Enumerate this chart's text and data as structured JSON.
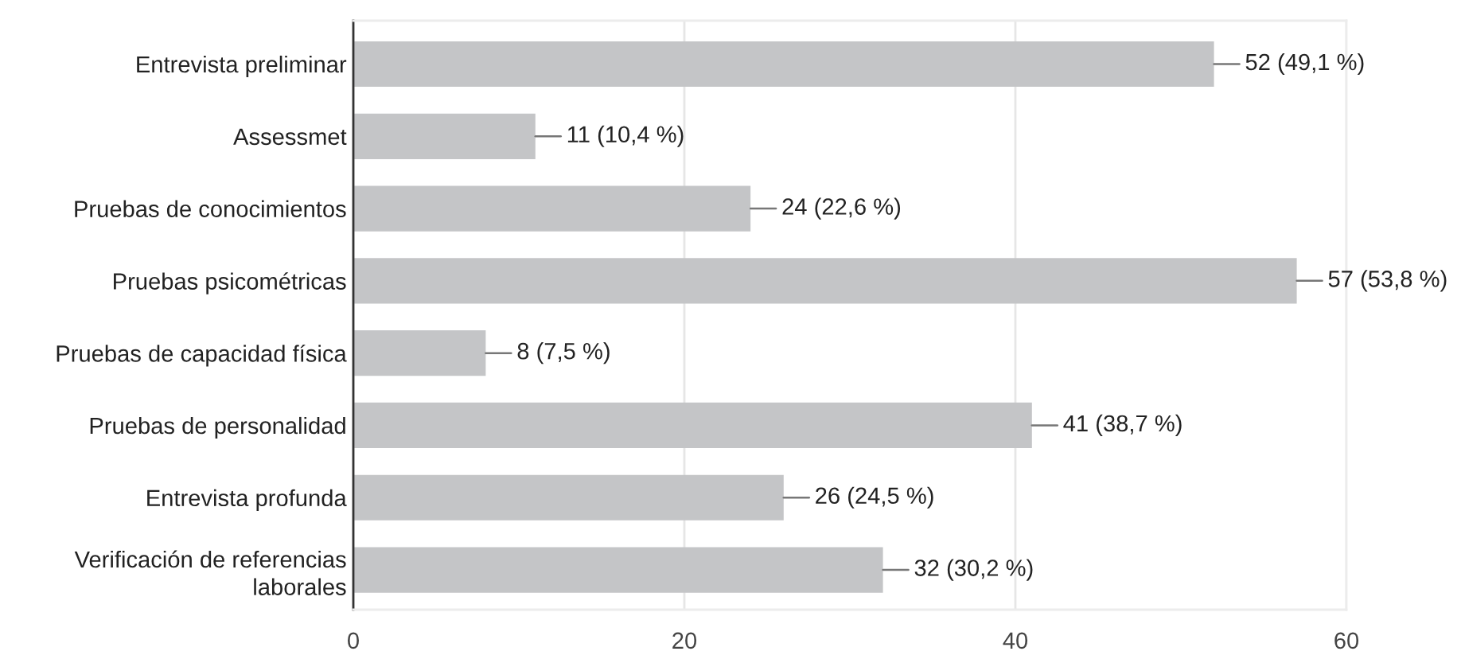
{
  "chart_data": {
    "type": "bar",
    "orientation": "horizontal",
    "categories": [
      "Entrevista preliminar",
      "Assessmet",
      "Pruebas de conocimientos",
      "Pruebas psicométricas",
      "Pruebas de capacidad física",
      "Pruebas de personalidad",
      "Entrevista profunda",
      "Verificación de referencias laborales"
    ],
    "values": [
      52,
      11,
      24,
      57,
      8,
      41,
      26,
      32
    ],
    "value_labels": [
      "52 (49,1 %)",
      "11 (10,4 %)",
      "24 (22,6 %)",
      "57 (53,8 %)",
      "8 (7,5 %)",
      "41 (38,7 %)",
      "26 (24,5 %)",
      "32 (30,2 %)"
    ],
    "color": "#c4c5c7",
    "xlim": [
      0,
      60
    ],
    "xticks": [
      0,
      20,
      40,
      60
    ],
    "grid": "x"
  }
}
